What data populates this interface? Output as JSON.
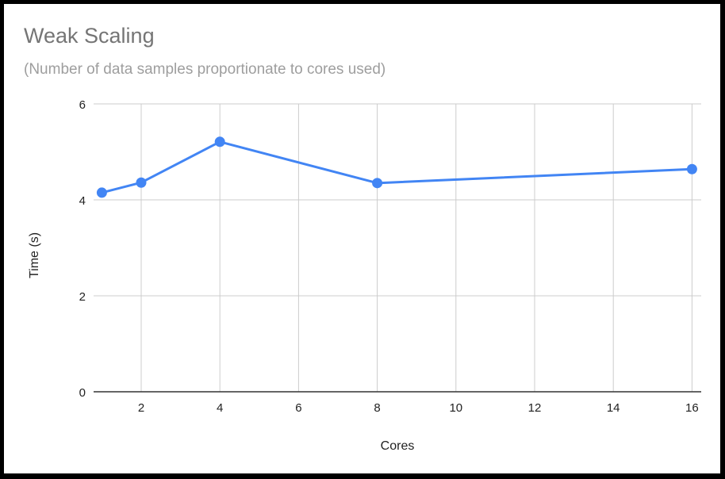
{
  "chart_data": {
    "type": "line",
    "title": "Weak Scaling",
    "subtitle": "(Number of data samples proportionate to cores used)",
    "xlabel": "Cores",
    "ylabel": "Time (s)",
    "x": [
      1,
      2,
      4,
      8,
      16
    ],
    "series": [
      {
        "name": "Time (s)",
        "values": [
          4.15,
          4.36,
          5.21,
          4.35,
          4.64
        ],
        "color": "#4285f4"
      }
    ],
    "xlim": [
      1,
      16
    ],
    "ylim": [
      0,
      6
    ],
    "x_ticks": [
      2,
      4,
      6,
      8,
      10,
      12,
      14,
      16
    ],
    "y_ticks": [
      0,
      2,
      4,
      6
    ],
    "grid": true,
    "legend": "none"
  },
  "colors": {
    "line": "#4285f4",
    "grid": "#cccccc",
    "axis": "#333333",
    "title": "#757575",
    "subtitle": "#9e9e9e"
  }
}
